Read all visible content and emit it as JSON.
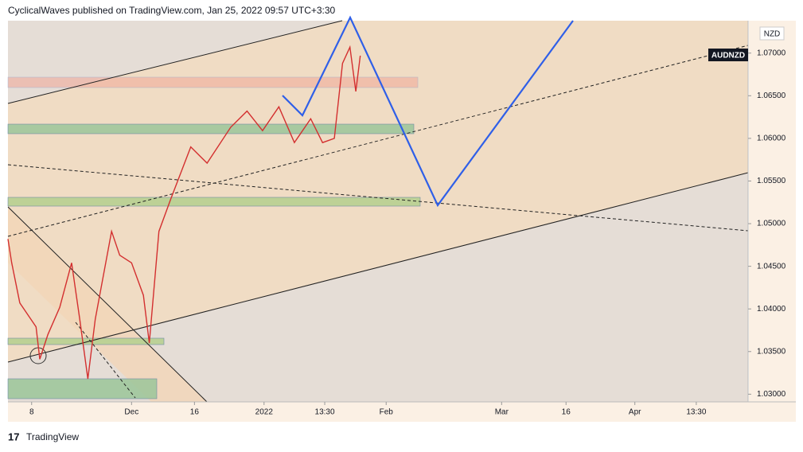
{
  "header": "CyclicalWaves published on TradingView.com, Jan 25, 2022 09:57 UTC+3:30",
  "footer": "TradingView",
  "chart_data": {
    "type": "line",
    "symbol": "AUDNZD",
    "currency": "NZD",
    "color": "#d32f2f",
    "x": [
      0,
      0.5,
      1.6,
      3.8,
      4.3,
      5.4,
      7.0,
      8.6,
      9.7,
      10.8,
      11.8,
      14.0,
      15.1,
      16.7,
      18.3,
      19.1,
      20.4,
      22.0,
      24.7,
      26.9,
      30.1,
      32.3,
      34.4,
      36.6,
      38.7,
      40.9,
      42.5,
      44.1,
      45.2,
      46.2,
      47.0,
      47.6
    ],
    "values": [
      1.0482,
      1.0454,
      1.0407,
      1.0379,
      1.0341,
      1.037,
      1.0402,
      1.0454,
      1.0388,
      1.0318,
      1.0388,
      1.0491,
      1.0463,
      1.0454,
      1.0416,
      1.036,
      1.0491,
      1.0529,
      1.059,
      1.0571,
      1.0613,
      1.0632,
      1.0609,
      1.0637,
      1.0595,
      1.0623,
      1.0595,
      1.06,
      1.0688,
      1.0707,
      1.0655,
      1.0697
    ],
    "xlim": [
      0,
      100
    ],
    "xticks": [
      {
        "value": 3.2,
        "label": "8"
      },
      {
        "value": 16.7,
        "label": "Dec"
      },
      {
        "value": 25.2,
        "label": "16"
      },
      {
        "value": 34.6,
        "label": "2022"
      },
      {
        "value": 42.8,
        "label": "13:30"
      },
      {
        "value": 51.1,
        "label": "Feb"
      },
      {
        "value": 66.7,
        "label": "Mar"
      },
      {
        "value": 75.4,
        "label": "16"
      },
      {
        "value": 84.7,
        "label": "Apr"
      },
      {
        "value": 93.0,
        "label": "13:30"
      }
    ],
    "ylim": [
      1.0291,
      1.0738
    ],
    "yticks": [
      {
        "value": 1.03,
        "label": "1.03000"
      },
      {
        "value": 1.035,
        "label": "1.03500"
      },
      {
        "value": 1.04,
        "label": "1.04000"
      },
      {
        "value": 1.045,
        "label": "1.04500"
      },
      {
        "value": 1.05,
        "label": "1.05000"
      },
      {
        "value": 1.055,
        "label": "1.05500"
      },
      {
        "value": 1.06,
        "label": "1.06000"
      },
      {
        "value": 1.065,
        "label": "1.06500"
      },
      {
        "value": 1.07,
        "label": "1.07000"
      }
    ]
  }
}
